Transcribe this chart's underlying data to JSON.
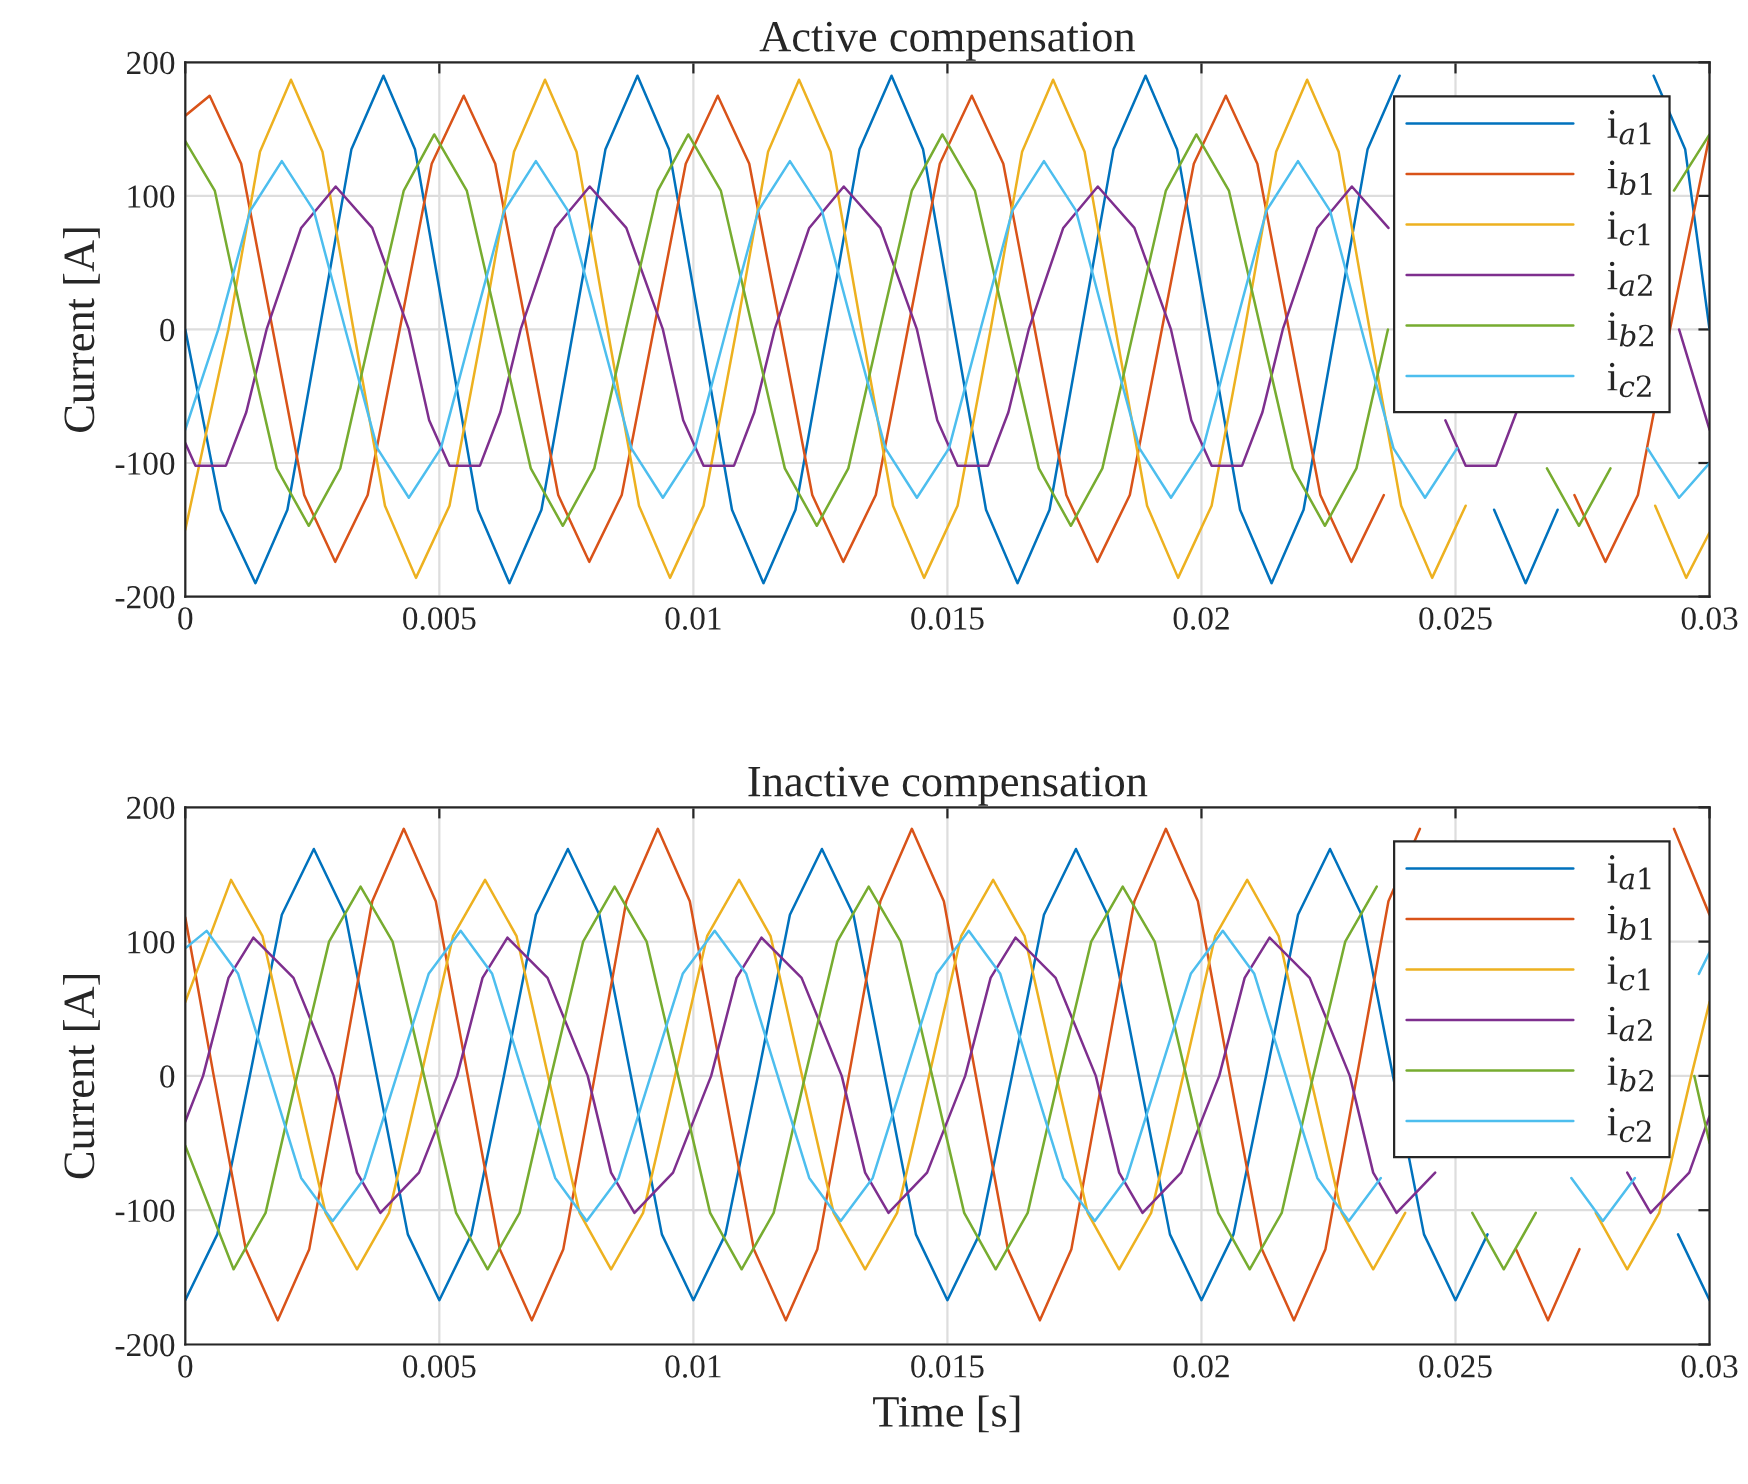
{
  "chart_data": [
    {
      "type": "line",
      "title": "Active compensation",
      "ylabel": "Current [A]",
      "xlim": [
        0,
        0.03
      ],
      "ylim": [
        -200,
        200
      ],
      "xticks": [
        0,
        0.005,
        0.01,
        0.015,
        0.02,
        0.025,
        0.03
      ],
      "yticks": [
        -200,
        -100,
        0,
        100,
        200
      ],
      "grid": true,
      "legend": "top right",
      "line_style": "solid",
      "series": [
        {
          "name": "i$_{a1}$",
          "color": "#0072bd",
          "x": [
            0,
            0.0007,
            0.00138,
            0.00201,
            0.00264,
            0.00327,
            0.0039,
            0.00452,
            0.00514,
            0.00576,
            0.00638,
            0.00701,
            0.00764,
            0.00827,
            0.0089,
            0.00952,
            0.01014,
            0.01076,
            0.01138,
            0.01201,
            0.01264,
            0.01327,
            0.0139,
            0.01452,
            0.01514,
            0.01576,
            0.01638,
            0.01701,
            0.01764,
            0.01827,
            0.0189,
            0.01952,
            0.02014,
            0.02076,
            0.02138,
            0.02201,
            0.02264,
            0.02327,
            0.0239,
            0.02452,
            0.02514,
            0.02576,
            0.02638,
            0.02701,
            0.02764,
            0.02827,
            0.0289,
            0.02952,
            0.03
          ],
          "values": [
            0,
            -135,
            -190,
            -135,
            0,
            135,
            190,
            135,
            0,
            -135,
            -190,
            -135,
            0,
            135,
            190,
            135,
            0,
            -135,
            -190,
            -135,
            0,
            135,
            190,
            135,
            0,
            -135,
            -190,
            -135,
            0,
            135,
            190,
            135,
            0,
            -135,
            -190,
            -135,
            0,
            135,
            190,
            null,
            null,
            -135,
            -190,
            -135,
            null,
            null,
            190,
            135,
            0
          ]
        },
        {
          "name": "i$_{b1}$",
          "color": "#d95319",
          "x": [
            0,
            0.00048,
            0.0011,
            0.00172,
            0.00234,
            0.00295,
            0.00359,
            0.00422,
            0.00485,
            0.00548,
            0.0061,
            0.00672,
            0.00734,
            0.00795,
            0.00859,
            0.00922,
            0.00985,
            0.01048,
            0.0111,
            0.01172,
            0.01234,
            0.01295,
            0.01359,
            0.01422,
            0.01485,
            0.01548,
            0.0161,
            0.01672,
            0.01734,
            0.01795,
            0.01859,
            0.01922,
            0.01985,
            0.02048,
            0.0211,
            0.02172,
            0.02234,
            0.02295,
            0.02359,
            0.02422,
            0.02485,
            0.02548,
            0.0261,
            0.02672,
            0.02734,
            0.02795,
            0.02859,
            0.02922,
            0.03
          ],
          "values": [
            160,
            175,
            124,
            0,
            -124,
            -174,
            -124,
            0,
            124,
            175,
            124,
            0,
            -124,
            -174,
            -124,
            0,
            124,
            175,
            124,
            0,
            -124,
            -174,
            -124,
            0,
            124,
            175,
            124,
            0,
            -124,
            -174,
            -124,
            0,
            124,
            175,
            124,
            0,
            -124,
            -174,
            -124,
            null,
            null,
            null,
            null,
            null,
            -124,
            -174,
            -124,
            0,
            145
          ]
        },
        {
          "name": "i$_{c1}$",
          "color": "#edb120",
          "x": [
            0,
            0.00085,
            0.00147,
            0.00208,
            0.0027,
            0.00331,
            0.00393,
            0.00454,
            0.0052,
            0.00585,
            0.00647,
            0.00708,
            0.0077,
            0.00831,
            0.00893,
            0.00954,
            0.0102,
            0.01085,
            0.01147,
            0.01208,
            0.0127,
            0.01331,
            0.01393,
            0.01454,
            0.0152,
            0.01585,
            0.01647,
            0.01708,
            0.0177,
            0.01831,
            0.01893,
            0.01954,
            0.0202,
            0.02085,
            0.02147,
            0.02208,
            0.0227,
            0.02331,
            0.02393,
            0.02454,
            0.0252,
            0.02585,
            0.02647,
            0.02708,
            0.0277,
            0.02831,
            0.02893,
            0.02954,
            0.03
          ],
          "values": [
            -150,
            0,
            133,
            187,
            133,
            0,
            -132,
            -186,
            -132,
            0,
            133,
            187,
            133,
            0,
            -132,
            -186,
            -132,
            0,
            133,
            187,
            133,
            0,
            -132,
            -186,
            -132,
            0,
            133,
            187,
            133,
            0,
            -132,
            -186,
            -132,
            0,
            133,
            187,
            133,
            0,
            -132,
            -186,
            -132,
            null,
            null,
            null,
            null,
            null,
            -132,
            -186,
            -152
          ]
        },
        {
          "name": "i$_{a2}$",
          "color": "#7e2f8e",
          "x": [
            0,
            0.0002,
            0.0008,
            0.0012,
            0.0016,
            0.00228,
            0.00296,
            0.00368,
            0.0044,
            0.0048,
            0.0052,
            0.0058,
            0.0062,
            0.0066,
            0.00728,
            0.00796,
            0.00868,
            0.0094,
            0.0098,
            0.0102,
            0.0108,
            0.0112,
            0.0116,
            0.01228,
            0.01296,
            0.01368,
            0.0144,
            0.0148,
            0.0152,
            0.0158,
            0.0162,
            0.0166,
            0.01728,
            0.01796,
            0.01868,
            0.0194,
            0.0198,
            0.0202,
            0.0208,
            0.0212,
            0.0216,
            0.02228,
            0.02296,
            0.02368,
            0.0244,
            0.0248,
            0.0252,
            0.0258,
            0.0262,
            0.0266,
            0.02728,
            0.02796,
            0.02868,
            0.0294,
            0.03
          ],
          "values": [
            -85,
            -102,
            -102,
            -62,
            0,
            76,
            107,
            76,
            0,
            -68,
            -102,
            -102,
            -62,
            0,
            76,
            107,
            76,
            0,
            -68,
            -102,
            -102,
            -62,
            0,
            76,
            107,
            76,
            0,
            -68,
            -102,
            -102,
            -62,
            0,
            76,
            107,
            76,
            0,
            -68,
            -102,
            -102,
            -62,
            0,
            76,
            107,
            76,
            null,
            -68,
            -102,
            -102,
            -62,
            null,
            null,
            null,
            null,
            0,
            -75
          ]
        },
        {
          "name": "i$_{b2}$",
          "color": "#77ac30",
          "x": [
            0,
            0.00058,
            0.00117,
            0.0018,
            0.00243,
            0.00305,
            0.00367,
            0.0043,
            0.0049,
            0.00554,
            0.00617,
            0.0068,
            0.00743,
            0.00805,
            0.00867,
            0.0093,
            0.0099,
            0.01054,
            0.01117,
            0.0118,
            0.01243,
            0.01305,
            0.01367,
            0.0143,
            0.0149,
            0.01554,
            0.01617,
            0.0168,
            0.01743,
            0.01805,
            0.01867,
            0.0193,
            0.0199,
            0.02054,
            0.02117,
            0.0218,
            0.02243,
            0.02305,
            0.02367,
            0.0243,
            0.0249,
            0.02554,
            0.02617,
            0.0268,
            0.02743,
            0.02805,
            0.02867,
            0.0293,
            0.03
          ],
          "values": [
            141,
            104,
            0,
            -104,
            -147,
            -104,
            0,
            104,
            146,
            104,
            0,
            -104,
            -147,
            -104,
            0,
            104,
            146,
            104,
            0,
            -104,
            -147,
            -104,
            0,
            104,
            146,
            104,
            0,
            -104,
            -147,
            -104,
            0,
            104,
            146,
            104,
            0,
            -104,
            -147,
            -104,
            0,
            null,
            null,
            null,
            null,
            -104,
            -147,
            -104,
            null,
            104,
            146
          ]
        },
        {
          "name": "i$_{c2}$",
          "color": "#4dbeee",
          "x": [
            0,
            0.00065,
            0.00128,
            0.0019,
            0.00253,
            0.00315,
            0.00378,
            0.0044,
            0.00503,
            0.00565,
            0.00628,
            0.0069,
            0.00753,
            0.00815,
            0.00878,
            0.0094,
            0.01003,
            0.01065,
            0.01128,
            0.0119,
            0.01253,
            0.01315,
            0.01378,
            0.0144,
            0.01503,
            0.01565,
            0.01628,
            0.0169,
            0.01753,
            0.01815,
            0.01878,
            0.0194,
            0.02003,
            0.02065,
            0.02128,
            0.0219,
            0.02253,
            0.02315,
            0.02378,
            0.0244,
            0.02503,
            0.02565,
            0.02628,
            0.0269,
            0.02753,
            0.02815,
            0.02878,
            0.0294,
            0.03
          ],
          "values": [
            -75,
            0,
            89,
            126,
            89,
            0,
            -89,
            -126,
            -89,
            0,
            89,
            126,
            89,
            0,
            -89,
            -126,
            -89,
            0,
            89,
            126,
            89,
            0,
            -89,
            -126,
            -89,
            0,
            89,
            126,
            89,
            0,
            -89,
            -126,
            -89,
            0,
            89,
            126,
            89,
            0,
            -89,
            -126,
            -89,
            null,
            null,
            null,
            null,
            null,
            -89,
            -126,
            -100
          ]
        }
      ]
    },
    {
      "type": "line",
      "title": "Inactive compensation",
      "xlabel": "Time [s]",
      "ylabel": "Current [A]",
      "xlim": [
        0,
        0.03
      ],
      "ylim": [
        -200,
        200
      ],
      "xticks": [
        0,
        0.005,
        0.01,
        0.015,
        0.02,
        0.025,
        0.03
      ],
      "yticks": [
        -200,
        -100,
        0,
        100,
        200
      ],
      "grid": true,
      "legend": "top right",
      "line_style": "solid",
      "series": [
        {
          "name": "i$_{a1}$",
          "color": "#0072bd",
          "x": [
            0,
            0.00063,
            0.00127,
            0.0019,
            0.00253,
            0.00315,
            0.00377,
            0.00438,
            0.005,
            0.00563,
            0.00627,
            0.0069,
            0.00753,
            0.00815,
            0.00877,
            0.00938,
            0.01,
            0.01063,
            0.01127,
            0.0119,
            0.01253,
            0.01315,
            0.01377,
            0.01438,
            0.015,
            0.01563,
            0.01627,
            0.0169,
            0.01753,
            0.01815,
            0.01877,
            0.01938,
            0.02,
            0.02063,
            0.02127,
            0.0219,
            0.02253,
            0.02315,
            0.02377,
            0.02438,
            0.025,
            0.02563,
            0.02627,
            0.0269,
            0.02753,
            0.02815,
            0.02877,
            0.02938,
            0.03
          ],
          "values": [
            -167,
            -118,
            0,
            120,
            169,
            120,
            0,
            -118,
            -167,
            -118,
            0,
            120,
            169,
            120,
            0,
            -118,
            -167,
            -118,
            0,
            120,
            169,
            120,
            0,
            -118,
            -167,
            -118,
            0,
            120,
            169,
            120,
            0,
            -118,
            -167,
            -118,
            0,
            120,
            169,
            120,
            0,
            -118,
            -167,
            -118,
            null,
            null,
            null,
            null,
            null,
            -118,
            -167
          ]
        },
        {
          "name": "i$_{b1}$",
          "color": "#d95319",
          "x": [
            0,
            0.00056,
            0.00119,
            0.00182,
            0.00244,
            0.00306,
            0.00368,
            0.0043,
            0.00493,
            0.00556,
            0.00619,
            0.00682,
            0.00744,
            0.00806,
            0.00868,
            0.0093,
            0.00993,
            0.01056,
            0.01119,
            0.01182,
            0.01244,
            0.01306,
            0.01368,
            0.0143,
            0.01493,
            0.01556,
            0.01619,
            0.01682,
            0.01744,
            0.01806,
            0.01868,
            0.0193,
            0.01993,
            0.02056,
            0.02119,
            0.02182,
            0.02244,
            0.02306,
            0.02368,
            0.0243,
            0.02493,
            0.02556,
            0.02619,
            0.02682,
            0.02744,
            0.02806,
            0.02868,
            0.0293,
            0.03
          ],
          "values": [
            118,
            0,
            -129,
            -182,
            -129,
            0,
            130,
            184,
            130,
            0,
            -129,
            -182,
            -129,
            0,
            130,
            184,
            130,
            0,
            -129,
            -182,
            -129,
            0,
            130,
            184,
            130,
            0,
            -129,
            -182,
            -129,
            0,
            130,
            184,
            130,
            0,
            -129,
            -182,
            -129,
            0,
            130,
            184,
            null,
            null,
            -129,
            -182,
            -129,
            null,
            null,
            184,
            120
          ]
        },
        {
          "name": "i$_{c1}$",
          "color": "#edb120",
          "x": [
            0,
            0.0009,
            0.00152,
            0.00214,
            0.00276,
            0.00338,
            0.00401,
            0.00464,
            0.00527,
            0.0059,
            0.00652,
            0.00714,
            0.00776,
            0.00838,
            0.00901,
            0.00964,
            0.01027,
            0.0109,
            0.01152,
            0.01214,
            0.01276,
            0.01338,
            0.01401,
            0.01464,
            0.01527,
            0.0159,
            0.01652,
            0.01714,
            0.01776,
            0.01838,
            0.01901,
            0.01964,
            0.02027,
            0.0209,
            0.02152,
            0.02214,
            0.02276,
            0.02338,
            0.02401,
            0.02464,
            0.02527,
            0.0259,
            0.02652,
            0.02714,
            0.02776,
            0.02838,
            0.02901,
            0.02964,
            0.03
          ],
          "values": [
            55,
            146,
            104,
            0,
            -102,
            -144,
            -102,
            0,
            104,
            146,
            104,
            0,
            -102,
            -144,
            -102,
            0,
            104,
            146,
            104,
            0,
            -102,
            -144,
            -102,
            0,
            104,
            146,
            104,
            0,
            -102,
            -144,
            -102,
            0,
            104,
            146,
            104,
            0,
            -102,
            -144,
            -102,
            null,
            null,
            null,
            null,
            null,
            -102,
            -144,
            -102,
            0,
            55
          ]
        },
        {
          "name": "i$_{a2}$",
          "color": "#7e2f8e",
          "x": [
            0,
            0.00035,
            0.00085,
            0.00134,
            0.00213,
            0.00292,
            0.00338,
            0.00384,
            0.0046,
            0.00535,
            0.00585,
            0.00634,
            0.00713,
            0.00792,
            0.00838,
            0.00884,
            0.0096,
            0.01035,
            0.01085,
            0.01134,
            0.01213,
            0.01292,
            0.01338,
            0.01384,
            0.0146,
            0.01535,
            0.01585,
            0.01634,
            0.01713,
            0.01792,
            0.01838,
            0.01884,
            0.0196,
            0.02035,
            0.02085,
            0.02134,
            0.02213,
            0.02292,
            0.02338,
            0.02384,
            0.0246,
            0.02535,
            0.02585,
            0.02634,
            0.02713,
            0.02792,
            0.02838,
            0.02884,
            0.0296,
            0.03
          ],
          "values": [
            -34,
            0,
            73,
            103,
            73,
            0,
            -72,
            -102,
            -72,
            0,
            73,
            103,
            73,
            0,
            -72,
            -102,
            -72,
            0,
            73,
            103,
            73,
            0,
            -72,
            -102,
            -72,
            0,
            73,
            103,
            73,
            0,
            -72,
            -102,
            -72,
            0,
            73,
            103,
            73,
            0,
            -72,
            -102,
            -72,
            null,
            null,
            null,
            null,
            null,
            -72,
            -102,
            -72,
            -30
          ]
        },
        {
          "name": "i$_{b2}$",
          "color": "#77ac30",
          "x": [
            0,
            0.00095,
            0.00158,
            0.0022,
            0.00283,
            0.00345,
            0.00408,
            0.0047,
            0.00533,
            0.00595,
            0.00658,
            0.0072,
            0.00783,
            0.00845,
            0.00908,
            0.0097,
            0.01033,
            0.01095,
            0.01158,
            0.0122,
            0.01283,
            0.01345,
            0.01408,
            0.0147,
            0.01533,
            0.01595,
            0.01658,
            0.0172,
            0.01783,
            0.01845,
            0.01908,
            0.0197,
            0.02033,
            0.02095,
            0.02158,
            0.0222,
            0.02283,
            0.02345,
            0.02408,
            0.0247,
            0.02533,
            0.02595,
            0.02658,
            0.0272,
            0.02783,
            0.02845,
            0.02908,
            0.0297,
            0.03
          ],
          "values": [
            -52,
            -144,
            -102,
            0,
            100,
            141,
            100,
            0,
            -102,
            -144,
            -102,
            0,
            100,
            141,
            100,
            0,
            -102,
            -144,
            -102,
            0,
            100,
            141,
            100,
            0,
            -102,
            -144,
            -102,
            0,
            100,
            141,
            100,
            0,
            -102,
            -144,
            -102,
            0,
            100,
            141,
            null,
            null,
            -102,
            -144,
            -102,
            null,
            null,
            null,
            null,
            0,
            -50
          ]
        },
        {
          "name": "i$_{c2}$",
          "color": "#4dbeee",
          "x": [
            0,
            0.00042,
            0.00104,
            0.00166,
            0.00228,
            0.0029,
            0.00353,
            0.00416,
            0.00479,
            0.00542,
            0.00604,
            0.00666,
            0.00728,
            0.0079,
            0.00853,
            0.00916,
            0.00979,
            0.01042,
            0.01104,
            0.01166,
            0.01228,
            0.0129,
            0.01353,
            0.01416,
            0.01479,
            0.01542,
            0.01604,
            0.01666,
            0.01728,
            0.0179,
            0.01853,
            0.01916,
            0.01979,
            0.02042,
            0.02104,
            0.02166,
            0.02228,
            0.0229,
            0.02353,
            0.02416,
            0.02479,
            0.02542,
            0.02604,
            0.02666,
            0.02728,
            0.0279,
            0.02853,
            0.02916,
            0.02979,
            0.03
          ],
          "values": [
            95,
            108,
            76,
            0,
            -76,
            -108,
            -76,
            0,
            76,
            108,
            76,
            0,
            -76,
            -108,
            -76,
            0,
            76,
            108,
            76,
            0,
            -76,
            -108,
            -76,
            0,
            76,
            108,
            76,
            0,
            -76,
            -108,
            -76,
            0,
            76,
            108,
            76,
            0,
            -76,
            -108,
            -76,
            null,
            null,
            null,
            null,
            null,
            -76,
            -108,
            -76,
            null,
            76,
            92
          ]
        }
      ]
    }
  ]
}
